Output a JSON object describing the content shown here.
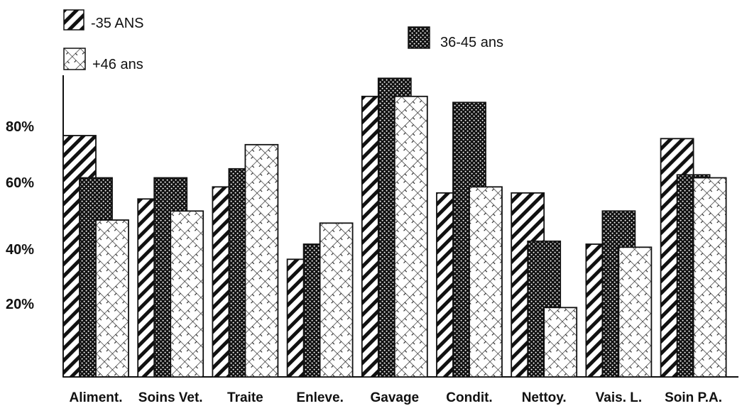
{
  "chart_data": {
    "type": "bar",
    "title": "",
    "xlabel": "",
    "ylabel": "",
    "ylim": [
      0,
      100
    ],
    "yticks": [
      20,
      40,
      60,
      80
    ],
    "ytick_labels": [
      "20%",
      "40%",
      "60%",
      "80%"
    ],
    "grid": false,
    "legend_placement": "top",
    "categories": [
      "Aliment.",
      "Soins Vet.",
      "Traite",
      "Enleve.",
      "Gavage",
      "Condit.",
      "Nettoy.",
      "Vais. L.",
      "Soin P.A."
    ],
    "series": [
      {
        "name": "-35 ANS",
        "pattern": "diagonal-stripes",
        "values": [
          80,
          59,
          63,
          39,
          93,
          61,
          61,
          44,
          79
        ]
      },
      {
        "name": "36-45 ans",
        "pattern": "dots",
        "values": [
          66,
          66,
          69,
          44,
          99,
          91,
          45,
          55,
          67
        ]
      },
      {
        "name": "+46 ans",
        "pattern": "crosshatch",
        "values": [
          52,
          55,
          77,
          51,
          93,
          63,
          23,
          43,
          66
        ]
      }
    ]
  }
}
